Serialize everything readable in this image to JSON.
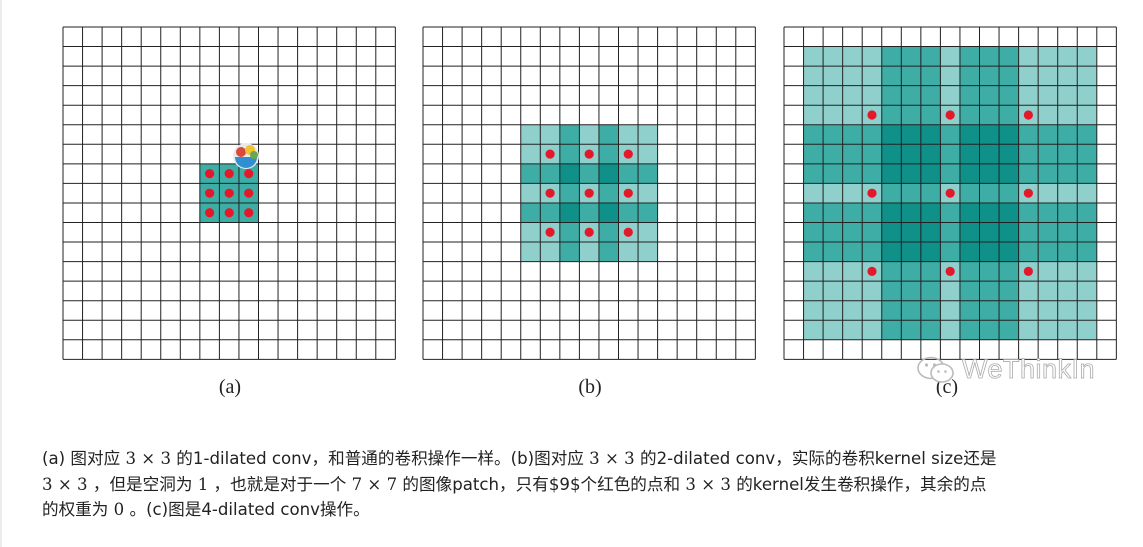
{
  "panels": [
    {
      "id": "a",
      "label": "(a)",
      "dilation": 1
    },
    {
      "id": "b",
      "label": "(b)",
      "dilation": 2
    },
    {
      "id": "c",
      "label": "(c)",
      "dilation": 4
    }
  ],
  "watermark": {
    "text": "WeThinkIn",
    "icon": "wechat-icon"
  },
  "colors": {
    "light": "#8fd0cc",
    "mid": "#3dada6",
    "dark": "#0f918a",
    "grid": "#222222",
    "dot": "#e3192a"
  },
  "caption": {
    "l1_a": "(a) 图对应 ",
    "l1_m1": "3 × 3",
    "l1_b": " 的1-dilated conv，和普通的卷积操作一样。(b)图对应 ",
    "l1_m2": "3 × 3",
    "l1_c": " 的2-dilated conv，实际的卷积kernel size还是",
    "l2_m1": "3 × 3",
    "l2_a": " ，但是空洞为 ",
    "l2_m2": "1",
    "l2_b": " ，也就是对于一个 ",
    "l2_m3": "7 × 7",
    "l2_c": " 的图像patch，只有$9$个红色的点和 ",
    "l2_m4": "3 × 3",
    "l2_d": " 的kernel发生卷积操作，其余的点",
    "l3_a": "的权重为 ",
    "l3_m1": "0",
    "l3_b": " 。(c)图是4-dilated conv操作。"
  }
}
